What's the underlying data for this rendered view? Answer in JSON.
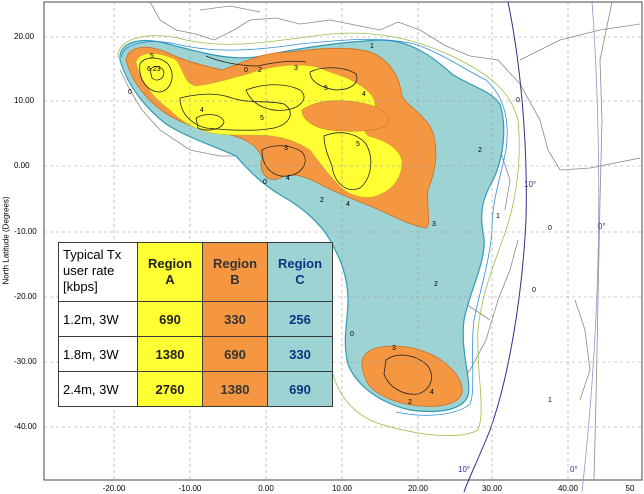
{
  "map": {
    "y_axis_label": "North Latitude (Degrees)",
    "y_ticks": [
      "20.00",
      "10.00",
      "0.00",
      "-10.00",
      "-20.00",
      "-30.00",
      "-40.00"
    ],
    "x_ticks": [
      "-20.00",
      "-10.00",
      "0.00",
      "10.00",
      "20.00",
      "30.00",
      "40.00",
      "50"
    ],
    "contour_labels": [
      "6.23",
      "5",
      "4",
      "3",
      "2",
      "1",
      "0"
    ],
    "meridian_labels": [
      "10°",
      "0°"
    ],
    "colors": {
      "region_a": "#ffff33",
      "region_b": "#f59640",
      "region_c": "#9ed3d3",
      "graticule": "#9a9a9a",
      "meridian": "#3a2a8a"
    }
  },
  "table": {
    "header_label": "Typical Tx user rate [kbps]",
    "columns": [
      "Region A",
      "Region B",
      "Region C"
    ],
    "rows": [
      {
        "label": "1.2m, 3W",
        "a": "690",
        "b": "330",
        "c": "256"
      },
      {
        "label": "1.8m, 3W",
        "a": "1380",
        "b": "690",
        "c": "330"
      },
      {
        "label": "2.4m, 3W",
        "a": "2760",
        "b": "1380",
        "c": "690"
      }
    ]
  }
}
